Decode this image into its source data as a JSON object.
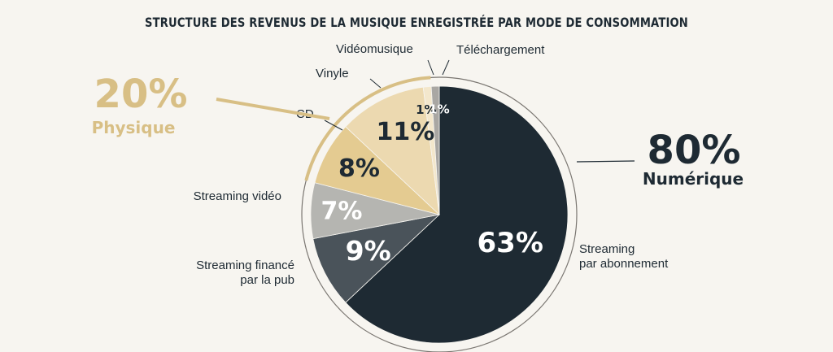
{
  "chart_data": {
    "type": "pie",
    "title": "STRUCTURE DES REVENUS DE LA MUSIQUE ENREGISTRÉE PAR MODE DE CONSOMMATION",
    "slices": [
      {
        "label": "Streaming par abonnement",
        "label_lines": [
          "Streaming",
          "par abonnement"
        ],
        "value": 63,
        "display": "63%",
        "color": "#1e2a33",
        "text_color": "#ffffff"
      },
      {
        "label": "Streaming financé par la pub",
        "label_lines": [
          "Streaming financé",
          "par la pub"
        ],
        "value": 9,
        "display": "9%",
        "color": "#4a535a",
        "text_color": "#ffffff"
      },
      {
        "label": "Streaming vidéo",
        "label_lines": [
          "Streaming vidéo"
        ],
        "value": 7,
        "display": "7%",
        "color": "#b5b5b1",
        "text_color": "#ffffff"
      },
      {
        "label": "CD",
        "label_lines": [
          "CD"
        ],
        "value": 8,
        "display": "8%",
        "color": "#e4cb91",
        "text_color": "#1e2a33"
      },
      {
        "label": "Vinyle",
        "label_lines": [
          "Vinyle"
        ],
        "value": 11,
        "display": "11%",
        "color": "#ecd9b0",
        "text_color": "#1e2a33"
      },
      {
        "label": "Vidéomusique",
        "label_lines": [
          "Vidéomusique"
        ],
        "value": 1,
        "display": "1%",
        "color": "#f3e7cc",
        "text_color": "#1e2a33"
      },
      {
        "label": "Téléchargement",
        "label_lines": [
          "Téléchargement"
        ],
        "value": 1,
        "display": "1%",
        "color": "#a9a7a3",
        "text_color": "#ffffff"
      }
    ],
    "groups": [
      {
        "value": "80%",
        "label": "Numérique",
        "color": "#1e2a33"
      },
      {
        "value": "20%",
        "label": "Physique",
        "color": "#d8bf85"
      }
    ]
  }
}
